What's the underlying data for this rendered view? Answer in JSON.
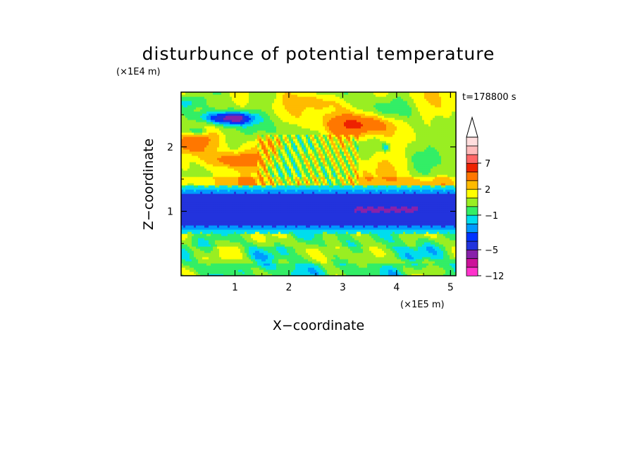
{
  "chart_data": {
    "type": "heatmap",
    "title": "disturbunce of potential temperature",
    "xlabel": "X−coordinate",
    "ylabel": "Z−coordinate",
    "x_unit": "(×1E5 m)",
    "y_unit": "(×1E4 m)",
    "time_label": "t=178800 s",
    "xlim": [
      0,
      5.1
    ],
    "ylim": [
      0,
      2.85
    ],
    "x_ticks": [
      {
        "value": 1,
        "label": "1"
      },
      {
        "value": 2,
        "label": "2"
      },
      {
        "value": 3,
        "label": "3"
      },
      {
        "value": 4,
        "label": "4"
      },
      {
        "value": 5,
        "label": "5"
      }
    ],
    "y_ticks": [
      {
        "value": 1,
        "label": "1"
      },
      {
        "value": 2,
        "label": "2"
      }
    ],
    "colorbar": {
      "extend_max": true,
      "levels": [
        -12,
        -9,
        -7,
        -5,
        -4,
        -3,
        -2,
        -1,
        0,
        1,
        2,
        3,
        5,
        7,
        9,
        11
      ],
      "colors": [
        "#ff33cc",
        "#cc1199",
        "#8822aa",
        "#2233dd",
        "#0033ff",
        "#0099ff",
        "#00ddee",
        "#33ee66",
        "#99ee22",
        "#ffff00",
        "#ffbb00",
        "#ff7700",
        "#ee2200",
        "#ff6666",
        "#ffbbbb",
        "#ffdddd"
      ],
      "tick_labels": [
        {
          "value": -12,
          "label": "−12"
        },
        {
          "value": -5,
          "label": "−5"
        },
        {
          "value": -1,
          "label": "−1"
        },
        {
          "value": 2,
          "label": "2"
        },
        {
          "value": 7,
          "label": "7"
        }
      ]
    },
    "features": [
      {
        "name": "cold core",
        "x": 1.0,
        "z": 2.45,
        "value": -6,
        "sx": 0.35,
        "sz": 0.1
      },
      {
        "name": "cold patch",
        "x": 0.55,
        "z": 2.45,
        "value": -3,
        "sx": 0.3,
        "sz": 0.1
      },
      {
        "name": "cold patch",
        "x": 0.3,
        "z": 2.25,
        "value": -3,
        "sx": 0.25,
        "sz": 0.07
      },
      {
        "name": "cold patch",
        "x": 0.1,
        "z": 2.7,
        "value": -2,
        "sx": 0.2,
        "sz": 0.1
      },
      {
        "name": "cold patch",
        "x": 3.8,
        "z": 2.0,
        "value": -3,
        "sx": 0.08,
        "sz": 0.06
      },
      {
        "name": "warm layer",
        "x": 1.0,
        "z": 1.8,
        "value": 4,
        "sx": 0.45,
        "sz": 0.12
      },
      {
        "name": "warm layer",
        "x": 0.1,
        "z": 2.05,
        "value": 3,
        "sx": 0.3,
        "sz": 0.15
      },
      {
        "name": "warm layer",
        "x": 3.45,
        "z": 2.35,
        "value": 4,
        "sx": 0.6,
        "sz": 0.16
      },
      {
        "name": "warm layer",
        "x": 1.7,
        "z": 2.05,
        "value": 2.5,
        "sx": 0.3,
        "sz": 0.12
      },
      {
        "name": "warm layer",
        "x": 2.6,
        "z": 2.7,
        "value": 2,
        "sx": 0.4,
        "sz": 0.12
      },
      {
        "name": "cool band",
        "x": 2.0,
        "z": 2.0,
        "value": -1,
        "sx": 0.3,
        "sz": 0.1
      },
      {
        "name": "cool band",
        "x": 3.8,
        "z": 2.6,
        "value": -0.5,
        "sx": 0.4,
        "sz": 0.1
      }
    ],
    "cold_band": {
      "z_bottom": 0.78,
      "z_top": 1.28,
      "value": -4.5,
      "core_value": -5.5
    }
  }
}
